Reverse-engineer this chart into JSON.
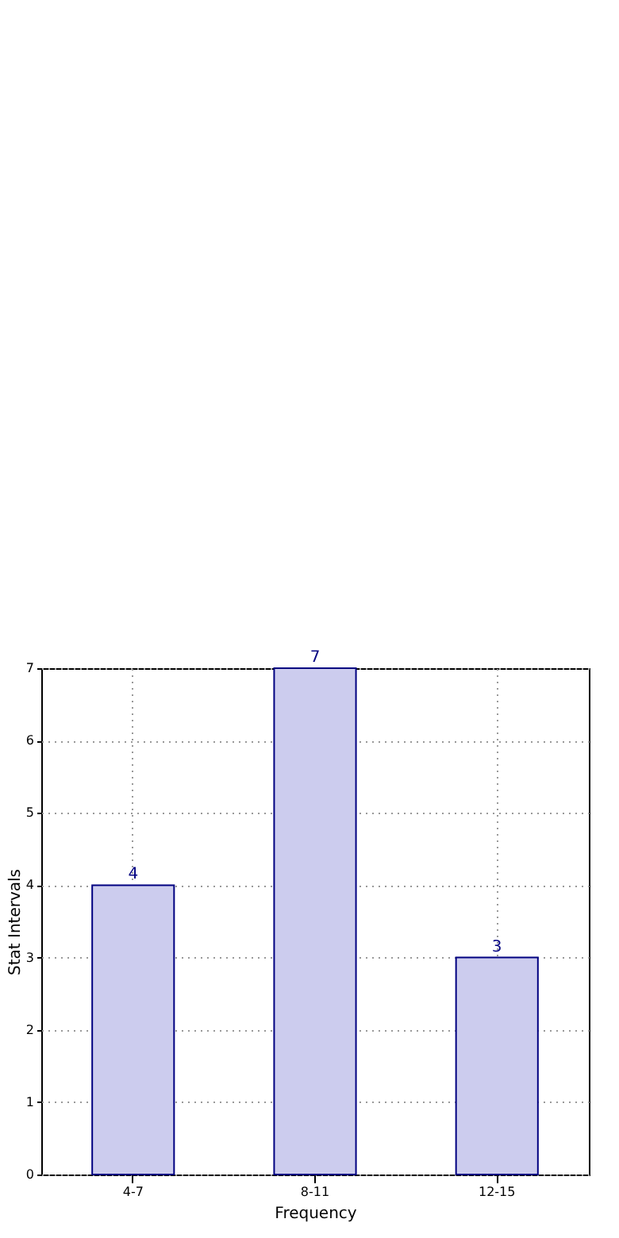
{
  "chart_data": {
    "type": "bar",
    "xlabel": "Frequency",
    "ylabel": "Stat Intervals",
    "categories": [
      "4-7",
      "8-11",
      "12-15"
    ],
    "values": [
      4,
      7,
      3
    ],
    "color": "#ccccee",
    "ylim": [
      0,
      7
    ],
    "yticks": [
      0,
      1,
      2,
      3,
      4,
      5,
      6,
      7
    ],
    "grid": true,
    "data_labels": true
  }
}
